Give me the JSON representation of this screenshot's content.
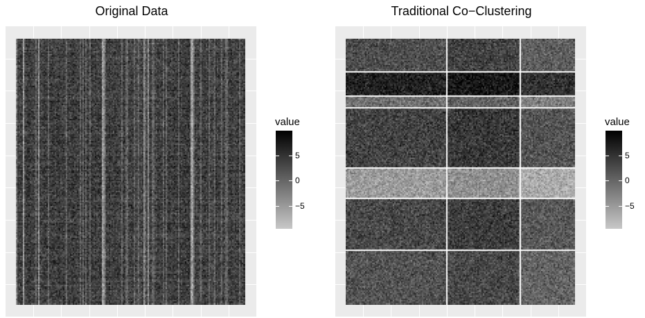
{
  "chart_data": [
    {
      "type": "heatmap",
      "title": "Original Data",
      "xlabel": "",
      "ylabel": "",
      "grid": true,
      "row_clusters": [
        1
      ],
      "col_clusters": [
        1
      ],
      "legend": {
        "title": "value",
        "placement": "right",
        "range": [
          -9,
          9
        ],
        "ticks": [
          5,
          0,
          -5
        ],
        "tick_labels": [
          "5",
          "0",
          "−5"
        ],
        "color_low": "#c8c8c8",
        "color_high": "#000000"
      }
    },
    {
      "type": "heatmap",
      "title": "Traditional Co−Clustering",
      "xlabel": "",
      "ylabel": "",
      "grid": true,
      "row_clusters": [
        0.125,
        0.09,
        0.045,
        0.225,
        0.115,
        0.195,
        0.185
      ],
      "row_cluster_mean": [
        2.0,
        6.0,
        -1.0,
        3.0,
        -5.0,
        2.5,
        1.5
      ],
      "col_clusters": [
        0.44,
        0.32,
        0.24
      ],
      "col_cluster_offset": [
        0.0,
        1.0,
        -1.5
      ],
      "legend": {
        "title": "value",
        "placement": "right",
        "range": [
          -9,
          9
        ],
        "ticks": [
          5,
          0,
          -5
        ],
        "tick_labels": [
          "5",
          "0",
          "−5"
        ],
        "color_low": "#c8c8c8",
        "color_high": "#000000"
      }
    }
  ]
}
